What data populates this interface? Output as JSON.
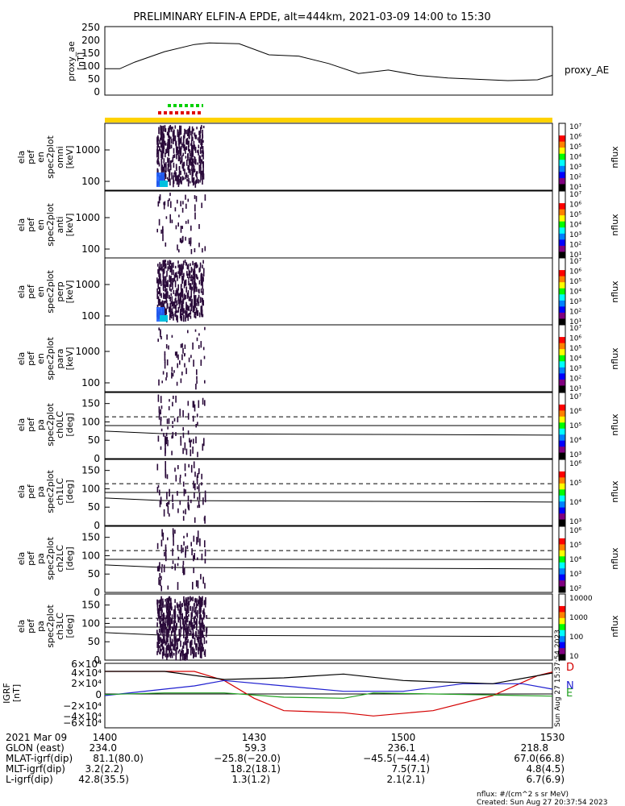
{
  "title": "PRELIMINARY ELFIN-A EPDE, alt=444km, 2021-03-09 14:00 to 15:30",
  "panels": {
    "ae": {
      "ylabel_lines": [
        "proxy_ae",
        "[nT]"
      ],
      "yticks": [
        "0",
        "50",
        "100",
        "150",
        "200",
        "250"
      ],
      "series_label": "proxy_AE"
    },
    "spec": [
      {
        "ylabel_lines": [
          "ela",
          "pef",
          "en",
          "spec2plot",
          "omni",
          "[keV]"
        ],
        "yticks": [
          "100",
          "1000"
        ],
        "cbar_ticks": [
          "10⁷",
          "10⁶",
          "10⁵",
          "10⁴",
          "10³",
          "10²",
          "10¹"
        ],
        "cbar_label": "nflux"
      },
      {
        "ylabel_lines": [
          "ela",
          "pef",
          "en",
          "spec2plot",
          "anti",
          "[keV]"
        ],
        "yticks": [
          "100",
          "1000"
        ],
        "cbar_ticks": [
          "10⁷",
          "10⁶",
          "10⁵",
          "10⁴",
          "10³",
          "10²",
          "10¹"
        ],
        "cbar_label": "nflux"
      },
      {
        "ylabel_lines": [
          "ela",
          "pef",
          "en",
          "spec2plot",
          "perp",
          "[keV]"
        ],
        "yticks": [
          "100",
          "1000"
        ],
        "cbar_ticks": [
          "10⁷",
          "10⁶",
          "10⁵",
          "10⁴",
          "10³",
          "10²",
          "10¹"
        ],
        "cbar_label": "nflux"
      },
      {
        "ylabel_lines": [
          "ela",
          "pef",
          "en",
          "spec2plot",
          "para",
          "[keV]"
        ],
        "yticks": [
          "100",
          "1000"
        ],
        "cbar_ticks": [
          "10⁷",
          "10⁶",
          "10⁵",
          "10⁴",
          "10³",
          "10²",
          "10¹"
        ],
        "cbar_label": "nflux"
      }
    ],
    "pa": [
      {
        "ylabel_lines": [
          "ela",
          "pef",
          "pa",
          "spec2plot",
          "ch0LC",
          "[deg]"
        ],
        "yticks": [
          "0",
          "50",
          "100",
          "150"
        ],
        "cbar_ticks": [
          "10⁷",
          "10⁶",
          "10⁵",
          "10⁴",
          "10³"
        ],
        "cbar_label": "nflux"
      },
      {
        "ylabel_lines": [
          "ela",
          "pef",
          "pa",
          "spec2plot",
          "ch1LC",
          "[deg]"
        ],
        "yticks": [
          "0",
          "50",
          "100",
          "150"
        ],
        "cbar_ticks": [
          "10⁶",
          "10⁵",
          "10⁴",
          "10³"
        ],
        "cbar_label": "nflux"
      },
      {
        "ylabel_lines": [
          "ela",
          "pef",
          "pa",
          "spec2plot",
          "ch2LC",
          "[deg]"
        ],
        "yticks": [
          "0",
          "50",
          "100",
          "150"
        ],
        "cbar_ticks": [
          "10⁶",
          "10⁵",
          "10⁴",
          "10³",
          "10²"
        ],
        "cbar_label": "nflux"
      },
      {
        "ylabel_lines": [
          "ela",
          "pef",
          "pa",
          "spec2plot",
          "ch3LC",
          "[deg]"
        ],
        "yticks": [
          "0",
          "50",
          "100",
          "150"
        ],
        "cbar_ticks": [
          "10000",
          "1000",
          "100",
          "10"
        ],
        "cbar_label": "nflux"
      }
    ],
    "igrf": {
      "ylabel_lines": [
        "IGRF",
        "[nT]"
      ],
      "yticks": [
        "−6×10⁴",
        "−4×10⁴",
        "−2×10⁴",
        "0",
        "2×10⁴",
        "4×10⁴",
        "6×10⁴"
      ],
      "legend": [
        "D",
        "N",
        "E"
      ],
      "stamp": "Sun Aug 27 15:37:54 2023"
    }
  },
  "footer": {
    "rows": [
      {
        "label": "2021 Mar 09",
        "values": [
          "1400",
          "1430",
          "1500",
          "1530"
        ]
      },
      {
        "label": "GLON (east)",
        "values": [
          "234.0",
          "59.3",
          "236.1",
          "218.8"
        ]
      },
      {
        "label": "MLAT-igrf(dip)",
        "values": [
          "81.1(80.0)",
          "−25.8(−20.0)",
          "−45.5(−44.4)",
          "67.0(66.8)"
        ]
      },
      {
        "label": "MLT-igrf(dip)",
        "values": [
          "3.2(2.2)",
          "18.2(18.1)",
          "7.5(7.1)",
          "4.8(4.5)"
        ]
      },
      {
        "label": "L-igrf(dip)",
        "values": [
          "42.8(35.5)",
          "1.3(1.2)",
          "2.1(2.1)",
          "6.7(6.9)"
        ]
      }
    ],
    "units_note": "nflux: #/(cm^2 s sr MeV)",
    "created": "Created: Sun Aug 27 20:37:54 2023"
  },
  "chart_data": [
    {
      "type": "line",
      "series": [
        {
          "name": "proxy_AE",
          "x": [
            14.0,
            14.05,
            14.1,
            14.2,
            14.3,
            14.35,
            14.45,
            14.55,
            14.65,
            14.75,
            14.85,
            14.95,
            15.05,
            15.15,
            15.25,
            15.35,
            15.45,
            15.5
          ],
          "values": [
            100,
            100,
            125,
            165,
            192,
            198,
            195,
            153,
            148,
            120,
            82,
            95,
            75,
            65,
            60,
            55,
            58,
            75
          ]
        }
      ],
      "xlim": [
        14.0,
        15.5
      ],
      "ylim": [
        0,
        260
      ]
    },
    {
      "type": "line",
      "series": [
        {
          "name": "D",
          "color": "#d40000",
          "x": [
            14.0,
            14.3,
            14.4,
            14.5,
            14.6,
            14.8,
            14.9,
            15.1,
            15.3,
            15.45,
            15.5
          ],
          "values": [
            45000,
            45000,
            28000,
            -5000,
            -28000,
            -32000,
            -38000,
            -28000,
            0,
            37000,
            44000
          ]
        },
        {
          "name": "N",
          "color": "#1f1fd0",
          "x": [
            14.0,
            14.3,
            14.4,
            14.6,
            14.8,
            15.0,
            15.2,
            15.4,
            15.5
          ],
          "values": [
            0,
            18000,
            28000,
            18000,
            8000,
            8000,
            22000,
            22000,
            12000
          ]
        },
        {
          "name": "E",
          "color": "#20a020",
          "x": [
            14.0,
            14.2,
            14.4,
            14.6,
            14.8,
            14.9,
            15.1,
            15.3,
            15.5
          ],
          "values": [
            2000,
            5000,
            5000,
            -3000,
            -5000,
            5000,
            3000,
            1000,
            -1000
          ]
        },
        {
          "name": "",
          "color": "#000000",
          "x": [
            14.0,
            14.2,
            14.4,
            14.6,
            14.8,
            15.0,
            15.3,
            15.5
          ],
          "values": [
            45000,
            45000,
            30000,
            33000,
            40000,
            28000,
            22000,
            42000
          ]
        }
      ],
      "xlim": [
        14.0,
        15.5
      ],
      "ylim": [
        -60000,
        60000
      ]
    }
  ]
}
